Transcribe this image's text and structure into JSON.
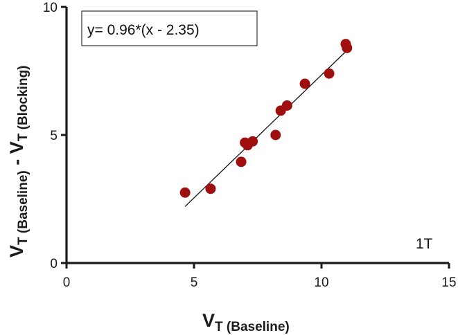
{
  "chart_data": {
    "type": "scatter",
    "xlim": [
      0,
      15
    ],
    "ylim": [
      0,
      10
    ],
    "x_ticks": [
      0,
      5,
      10,
      15
    ],
    "y_ticks": [
      0,
      5,
      10
    ],
    "x_tick_labels": [
      "0",
      "5",
      "10",
      "15"
    ],
    "y_tick_labels": [
      "0",
      "5",
      "10"
    ],
    "xlabel": {
      "main": "V",
      "sub": "T (Baseline)"
    },
    "ylabel": {
      "main1": "V",
      "sub1": "T (Baseline)",
      "mid": " - ",
      "main2": "V",
      "sub2": "T (Blocking)"
    },
    "points": [
      {
        "x": 4.65,
        "y": 2.75
      },
      {
        "x": 5.65,
        "y": 2.9
      },
      {
        "x": 6.85,
        "y": 3.95
      },
      {
        "x": 7.0,
        "y": 4.7
      },
      {
        "x": 7.1,
        "y": 4.6
      },
      {
        "x": 7.3,
        "y": 4.75
      },
      {
        "x": 8.2,
        "y": 5.0
      },
      {
        "x": 8.4,
        "y": 5.95
      },
      {
        "x": 8.65,
        "y": 6.15
      },
      {
        "x": 9.35,
        "y": 7.0
      },
      {
        "x": 10.3,
        "y": 7.4
      },
      {
        "x": 10.95,
        "y": 8.55
      },
      {
        "x": 11.0,
        "y": 8.4
      }
    ],
    "fit": {
      "equation_label": "y= 0.96*(x - 2.35)",
      "slope": 0.96,
      "x_intercept": 2.35,
      "x_range": [
        4.65,
        11.0
      ]
    },
    "panel_label": "1T",
    "colors": {
      "points": "#a00f0f",
      "axes": "#1a1a1a",
      "fit_line": "#111111"
    }
  }
}
